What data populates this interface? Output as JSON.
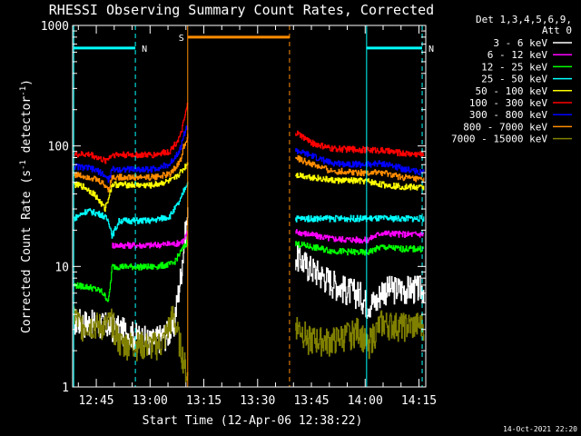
{
  "chart_data": {
    "type": "line",
    "title": "RHESSI Observing Summary Count Rates, Corrected",
    "xlabel": "Start Time (12-Apr-06 12:38:22)",
    "ylabel_main": "Corrected Count Rate (s",
    "ylabel_sup1": "-1",
    "ylabel_mid": " detector",
    "ylabel_sup2": "-1",
    "ylabel_end": ")",
    "yscale": "log",
    "ylim": [
      1,
      1000
    ],
    "xlim_minutes": [
      0,
      98.5
    ],
    "x_ticks": [
      {
        "label": "12:45",
        "min": 6.6
      },
      {
        "label": "13:00",
        "min": 21.6
      },
      {
        "label": "13:15",
        "min": 36.6
      },
      {
        "label": "13:30",
        "min": 51.6
      },
      {
        "label": "13:45",
        "min": 66.6
      },
      {
        "label": "14:00",
        "min": 81.6
      },
      {
        "label": "14:15",
        "min": 96.6
      }
    ],
    "y_ticks": [
      {
        "label": "1",
        "value": 1
      },
      {
        "label": "10",
        "value": 10
      },
      {
        "label": "100",
        "value": 100
      },
      {
        "label": "1000",
        "value": 1000
      }
    ],
    "legend_header": [
      "Det 1,3,4,5,6,9,",
      "Att 0"
    ],
    "series": [
      {
        "name": "3 - 6 keV",
        "color": "#ffffff",
        "points": [
          [
            0.3,
            3.6
          ],
          [
            11,
            3.2
          ],
          [
            22,
            2.4
          ],
          [
            28,
            3.0
          ],
          [
            30,
            8
          ],
          [
            31.2,
            17
          ],
          [
            32,
            26
          ],
          [
            62,
            12.5
          ],
          [
            66,
            10
          ],
          [
            71,
            8
          ],
          [
            76,
            6.5
          ],
          [
            80,
            6
          ],
          [
            82,
            5
          ],
          [
            85,
            5.2
          ],
          [
            86,
            6.5
          ],
          [
            91,
            6.6
          ],
          [
            98,
            6.6
          ]
        ]
      },
      {
        "name": "6 - 12 keV",
        "color": "#ff00ff",
        "points": [
          [
            11,
            15
          ],
          [
            22,
            15
          ],
          [
            29,
            15.5
          ],
          [
            31,
            16.5
          ],
          [
            32,
            19
          ],
          [
            62,
            19.5
          ],
          [
            72,
            17
          ],
          [
            82,
            16.5
          ],
          [
            86,
            19
          ],
          [
            92,
            18.5
          ],
          [
            98,
            18.5
          ]
        ]
      },
      {
        "name": "12 - 25 keV",
        "color": "#00ff00",
        "points": [
          [
            0.3,
            7.0
          ],
          [
            5,
            6.7
          ],
          [
            8,
            6.2
          ],
          [
            10,
            5.2
          ],
          [
            11,
            10
          ],
          [
            22,
            9.9
          ],
          [
            28,
            10.5
          ],
          [
            30,
            13
          ],
          [
            31,
            14.5
          ],
          [
            32,
            16
          ],
          [
            62,
            15.5
          ],
          [
            72,
            13.5
          ],
          [
            82,
            13
          ],
          [
            86,
            14.5
          ],
          [
            92,
            14
          ],
          [
            98,
            14
          ]
        ]
      },
      {
        "name": "25 - 50 keV",
        "color": "#00ffff",
        "points": [
          [
            0.3,
            25
          ],
          [
            4,
            29
          ],
          [
            8,
            27
          ],
          [
            10,
            24
          ],
          [
            11,
            18
          ],
          [
            13,
            24
          ],
          [
            22,
            24
          ],
          [
            27,
            26
          ],
          [
            30,
            35
          ],
          [
            31,
            43
          ],
          [
            32,
            50
          ],
          [
            62,
            25
          ],
          [
            72,
            25
          ],
          [
            82,
            25
          ],
          [
            86,
            25
          ],
          [
            92,
            25
          ],
          [
            98,
            25
          ]
        ]
      },
      {
        "name": "50 - 100 keV",
        "color": "#ffff00",
        "points": [
          [
            0.3,
            48
          ],
          [
            3,
            46
          ],
          [
            6,
            40
          ],
          [
            9,
            30
          ],
          [
            11,
            48
          ],
          [
            22,
            47
          ],
          [
            28,
            52
          ],
          [
            31,
            65
          ],
          [
            32,
            72
          ],
          [
            62,
            58
          ],
          [
            72,
            52
          ],
          [
            82,
            51
          ],
          [
            86,
            48
          ],
          [
            92,
            46
          ],
          [
            98,
            45
          ]
        ]
      },
      {
        "name": "100 - 300 keV",
        "color": "#ff0000",
        "points": [
          [
            0.3,
            85
          ],
          [
            5,
            85
          ],
          [
            9,
            75
          ],
          [
            11,
            85
          ],
          [
            22,
            84
          ],
          [
            27,
            90
          ],
          [
            30,
            120
          ],
          [
            31,
            160
          ],
          [
            32,
            220
          ],
          [
            62,
            130
          ],
          [
            67,
            105
          ],
          [
            72,
            95
          ],
          [
            82,
            93
          ],
          [
            86,
            92
          ],
          [
            92,
            87
          ],
          [
            98,
            85
          ]
        ]
      },
      {
        "name": "300 - 800 keV",
        "color": "#0000ff",
        "points": [
          [
            0.3,
            68
          ],
          [
            5,
            65
          ],
          [
            8,
            60
          ],
          [
            10,
            52
          ],
          [
            11,
            64
          ],
          [
            22,
            64
          ],
          [
            27,
            70
          ],
          [
            30,
            95
          ],
          [
            31,
            125
          ],
          [
            32,
            145
          ],
          [
            62,
            92
          ],
          [
            67,
            82
          ],
          [
            72,
            72
          ],
          [
            82,
            70
          ],
          [
            86,
            72
          ],
          [
            92,
            65
          ],
          [
            98,
            60
          ]
        ]
      },
      {
        "name": "800 - 7000 keV",
        "color": "#ff8c00",
        "points": [
          [
            0.3,
            58
          ],
          [
            5,
            55
          ],
          [
            8,
            50
          ],
          [
            10,
            44
          ],
          [
            11,
            55
          ],
          [
            22,
            55
          ],
          [
            27,
            58
          ],
          [
            30,
            75
          ],
          [
            31,
            100
          ],
          [
            32,
            120
          ],
          [
            62,
            80
          ],
          [
            67,
            70
          ],
          [
            72,
            62
          ],
          [
            82,
            60
          ],
          [
            86,
            60
          ],
          [
            92,
            55
          ],
          [
            98,
            52
          ]
        ]
      },
      {
        "name": "7000 - 15000 keV",
        "color": "#808000",
        "points": [
          [
            0.3,
            4
          ],
          [
            2,
            3.3
          ],
          [
            5,
            3.3
          ],
          [
            9,
            3.2
          ],
          [
            11,
            3.5
          ],
          [
            13,
            2.3
          ],
          [
            22,
            2.2
          ],
          [
            25,
            2.3
          ],
          [
            28,
            4
          ],
          [
            32,
            1.2
          ],
          [
            62,
            3.4
          ],
          [
            66,
            2.5
          ],
          [
            72,
            2.4
          ],
          [
            80,
            3.0
          ],
          [
            82,
            2.2
          ],
          [
            86,
            3.4
          ],
          [
            92,
            3.2
          ],
          [
            98,
            3.3
          ]
        ]
      }
    ],
    "markers": [
      {
        "label": "N",
        "color": "#00ffff",
        "start": 0.3,
        "end": 17.5,
        "level": 650
      },
      {
        "label": "N",
        "color": "#00ffff",
        "start": 82.0,
        "end": 97.5,
        "level": 650
      },
      {
        "label": "S",
        "color": "#ff8c00",
        "start": 32.1,
        "end": 60.5,
        "level": 800
      }
    ],
    "gaps": [
      [
        32.1,
        62.0
      ]
    ],
    "footer_date": "14-Oct-2021 22:20"
  }
}
